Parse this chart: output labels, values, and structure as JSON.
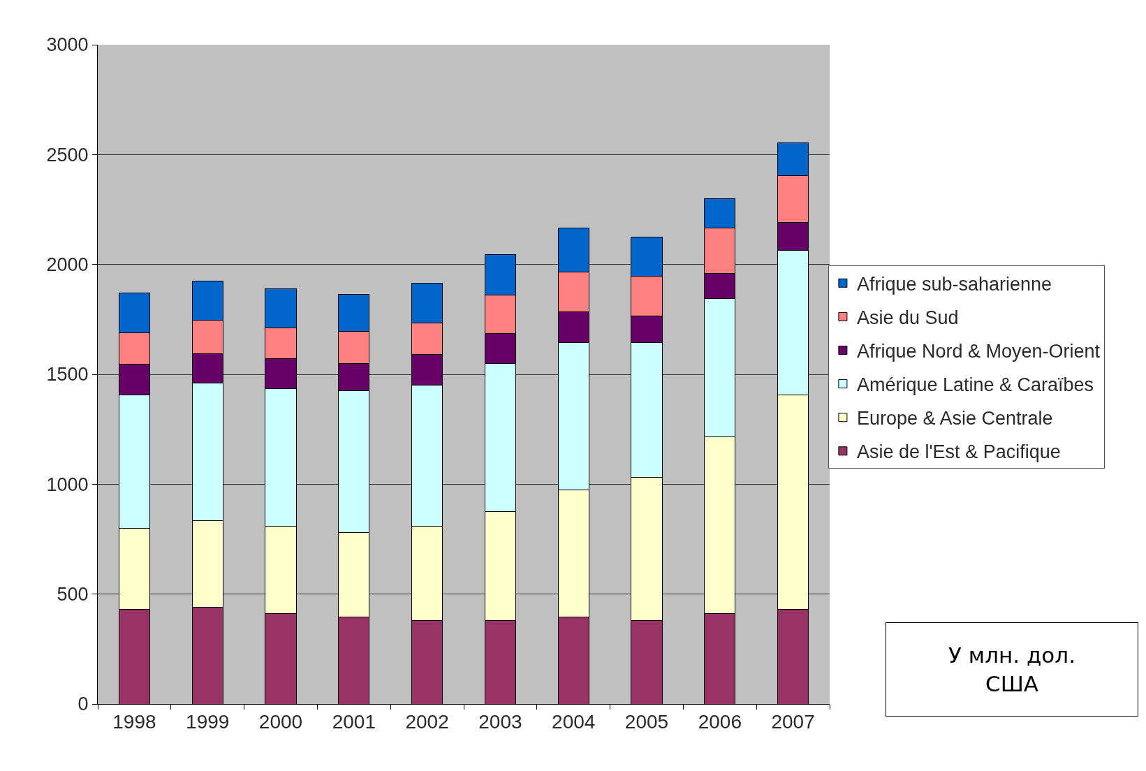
{
  "chart_data": {
    "type": "bar",
    "stacked": true,
    "categories": [
      "1998",
      "1999",
      "2000",
      "2001",
      "2002",
      "2003",
      "2004",
      "2005",
      "2006",
      "2007"
    ],
    "series": [
      {
        "name": "Asie de l'Est & Pacifique",
        "color": "#993366",
        "values": [
          430,
          440,
          410,
          395,
          380,
          380,
          395,
          380,
          410,
          430
        ]
      },
      {
        "name": "Europe & Asie Centrale",
        "color": "#ffffcc",
        "values": [
          370,
          395,
          400,
          385,
          430,
          495,
          580,
          650,
          805,
          975
        ]
      },
      {
        "name": "Amérique Latine & Caraïbes",
        "color": "#ccffff",
        "values": [
          605,
          625,
          625,
          645,
          640,
          675,
          670,
          615,
          630,
          660
        ]
      },
      {
        "name": "Afrique Nord & Moyen-Orient",
        "color": "#660066",
        "values": [
          140,
          135,
          135,
          125,
          140,
          135,
          140,
          120,
          115,
          125
        ]
      },
      {
        "name": "Asie du Sud",
        "color": "#ff8080",
        "values": [
          145,
          150,
          140,
          145,
          145,
          175,
          180,
          180,
          205,
          215
        ]
      },
      {
        "name": "Afrique sub-saharienne",
        "color": "#0066cc",
        "values": [
          180,
          180,
          180,
          170,
          180,
          185,
          200,
          180,
          135,
          150
        ]
      }
    ],
    "ylim": [
      0,
      3000
    ],
    "yticks": [
      0,
      500,
      1000,
      1500,
      2000,
      2500,
      3000
    ],
    "grid": "y",
    "legend": "right",
    "annotations": [
      "У млн. дол.\nСША"
    ]
  }
}
